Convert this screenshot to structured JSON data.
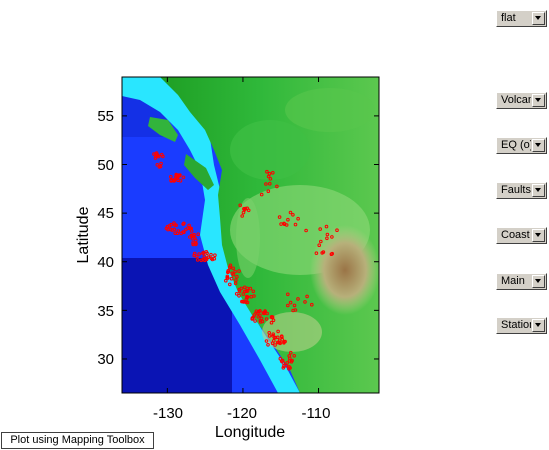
{
  "map": {
    "xlabel": "Longitude",
    "ylabel": "Latitude",
    "xlim": [
      -136,
      -102
    ],
    "ylim": [
      26.5,
      59
    ],
    "xticks": [
      -130,
      -120,
      -110
    ],
    "yticks": [
      30,
      35,
      40,
      45,
      50,
      55
    ],
    "xtick_labels": [
      "-130",
      "-120",
      "-110"
    ],
    "ytick_labels": [
      "30",
      "35",
      "40",
      "45",
      "50",
      "55"
    ],
    "colors": {
      "deep_ocean": "#0a14b4",
      "ocean": "#1a3cff",
      "shelf": "#29e6ff",
      "lowland": "#16a81c",
      "upland": "#7fd46b",
      "highland": "#a8845c",
      "earthquakes": "#ff0000"
    }
  },
  "controls": {
    "projection": "flat",
    "volcanoes": "Volcanoes",
    "earthquakes": "EQ (o)",
    "faults": "Faults",
    "coast": "Coast",
    "main": "Main",
    "stations": "Stations"
  },
  "buttons": {
    "plot_mapping_toolbox": "Plot using Mapping Toolbox"
  }
}
